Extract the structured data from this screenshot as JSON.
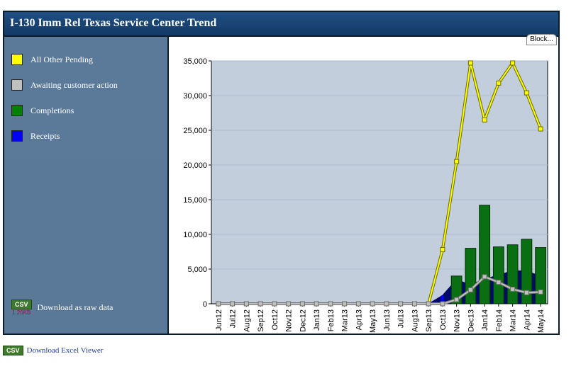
{
  "title": "I-130 Imm Rel Texas Service Center Trend",
  "block_button": "Block...",
  "legend": [
    {
      "label": "All Other Pending",
      "color": "#ffff00"
    },
    {
      "label": "Awaiting customer action",
      "color": "#c0c0c0"
    },
    {
      "label": "Completions",
      "color": "#008000"
    },
    {
      "label": "Receipts",
      "color": "#0000ff"
    }
  ],
  "sidebar_download": {
    "badge": "CSV",
    "size": "1.20KB",
    "label": "Download as raw data"
  },
  "footer": {
    "badge": "CSV",
    "link": "Download Excel Viewer"
  },
  "chart_data": {
    "type": "bar",
    "categories": [
      "Jun12",
      "Jul12",
      "Aug12",
      "Sep12",
      "Oct12",
      "Nov12",
      "Dec12",
      "Jan13",
      "Feb13",
      "Mar13",
      "Apr13",
      "May13",
      "Jun13",
      "Jul13",
      "Aug13",
      "Sep13",
      "Oct13",
      "Nov13",
      "Dec13",
      "Jan14",
      "Feb14",
      "Mar14",
      "Apr14",
      "May14"
    ],
    "ylim": [
      0,
      35000
    ],
    "yticks": [
      0,
      5000,
      10000,
      15000,
      20000,
      25000,
      30000,
      35000
    ],
    "ytick_labels": [
      "0",
      "5,000",
      "10,000",
      "15,000",
      "20,000",
      "25,000",
      "30,000",
      "35,000"
    ],
    "series": [
      {
        "name": "All Other Pending",
        "type": "line",
        "color": "#ffff00",
        "values": [
          0,
          0,
          0,
          0,
          0,
          0,
          0,
          0,
          0,
          0,
          0,
          0,
          0,
          0,
          0,
          0,
          7800,
          20500,
          34700,
          26500,
          31800,
          34700,
          30400,
          25200
        ]
      },
      {
        "name": "Awaiting customer action",
        "type": "line",
        "color": "#c0c0c0",
        "values": [
          0,
          0,
          0,
          0,
          0,
          0,
          0,
          0,
          0,
          0,
          0,
          0,
          0,
          0,
          0,
          0,
          0,
          600,
          2000,
          3900,
          3100,
          2100,
          1600,
          1700
        ]
      },
      {
        "name": "Completions",
        "type": "bar",
        "color": "#008000",
        "values": [
          0,
          0,
          0,
          0,
          0,
          0,
          0,
          0,
          0,
          0,
          0,
          0,
          0,
          0,
          0,
          0,
          0,
          4000,
          8000,
          14200,
          8200,
          8500,
          9300,
          8100
        ]
      },
      {
        "name": "Receipts",
        "type": "area",
        "color": "#0000ff",
        "values": [
          0,
          0,
          0,
          0,
          0,
          0,
          0,
          0,
          0,
          0,
          0,
          0,
          0,
          0,
          0,
          0,
          1200,
          3500,
          2700,
          3600,
          4100,
          4800,
          4700,
          4000
        ]
      }
    ]
  }
}
